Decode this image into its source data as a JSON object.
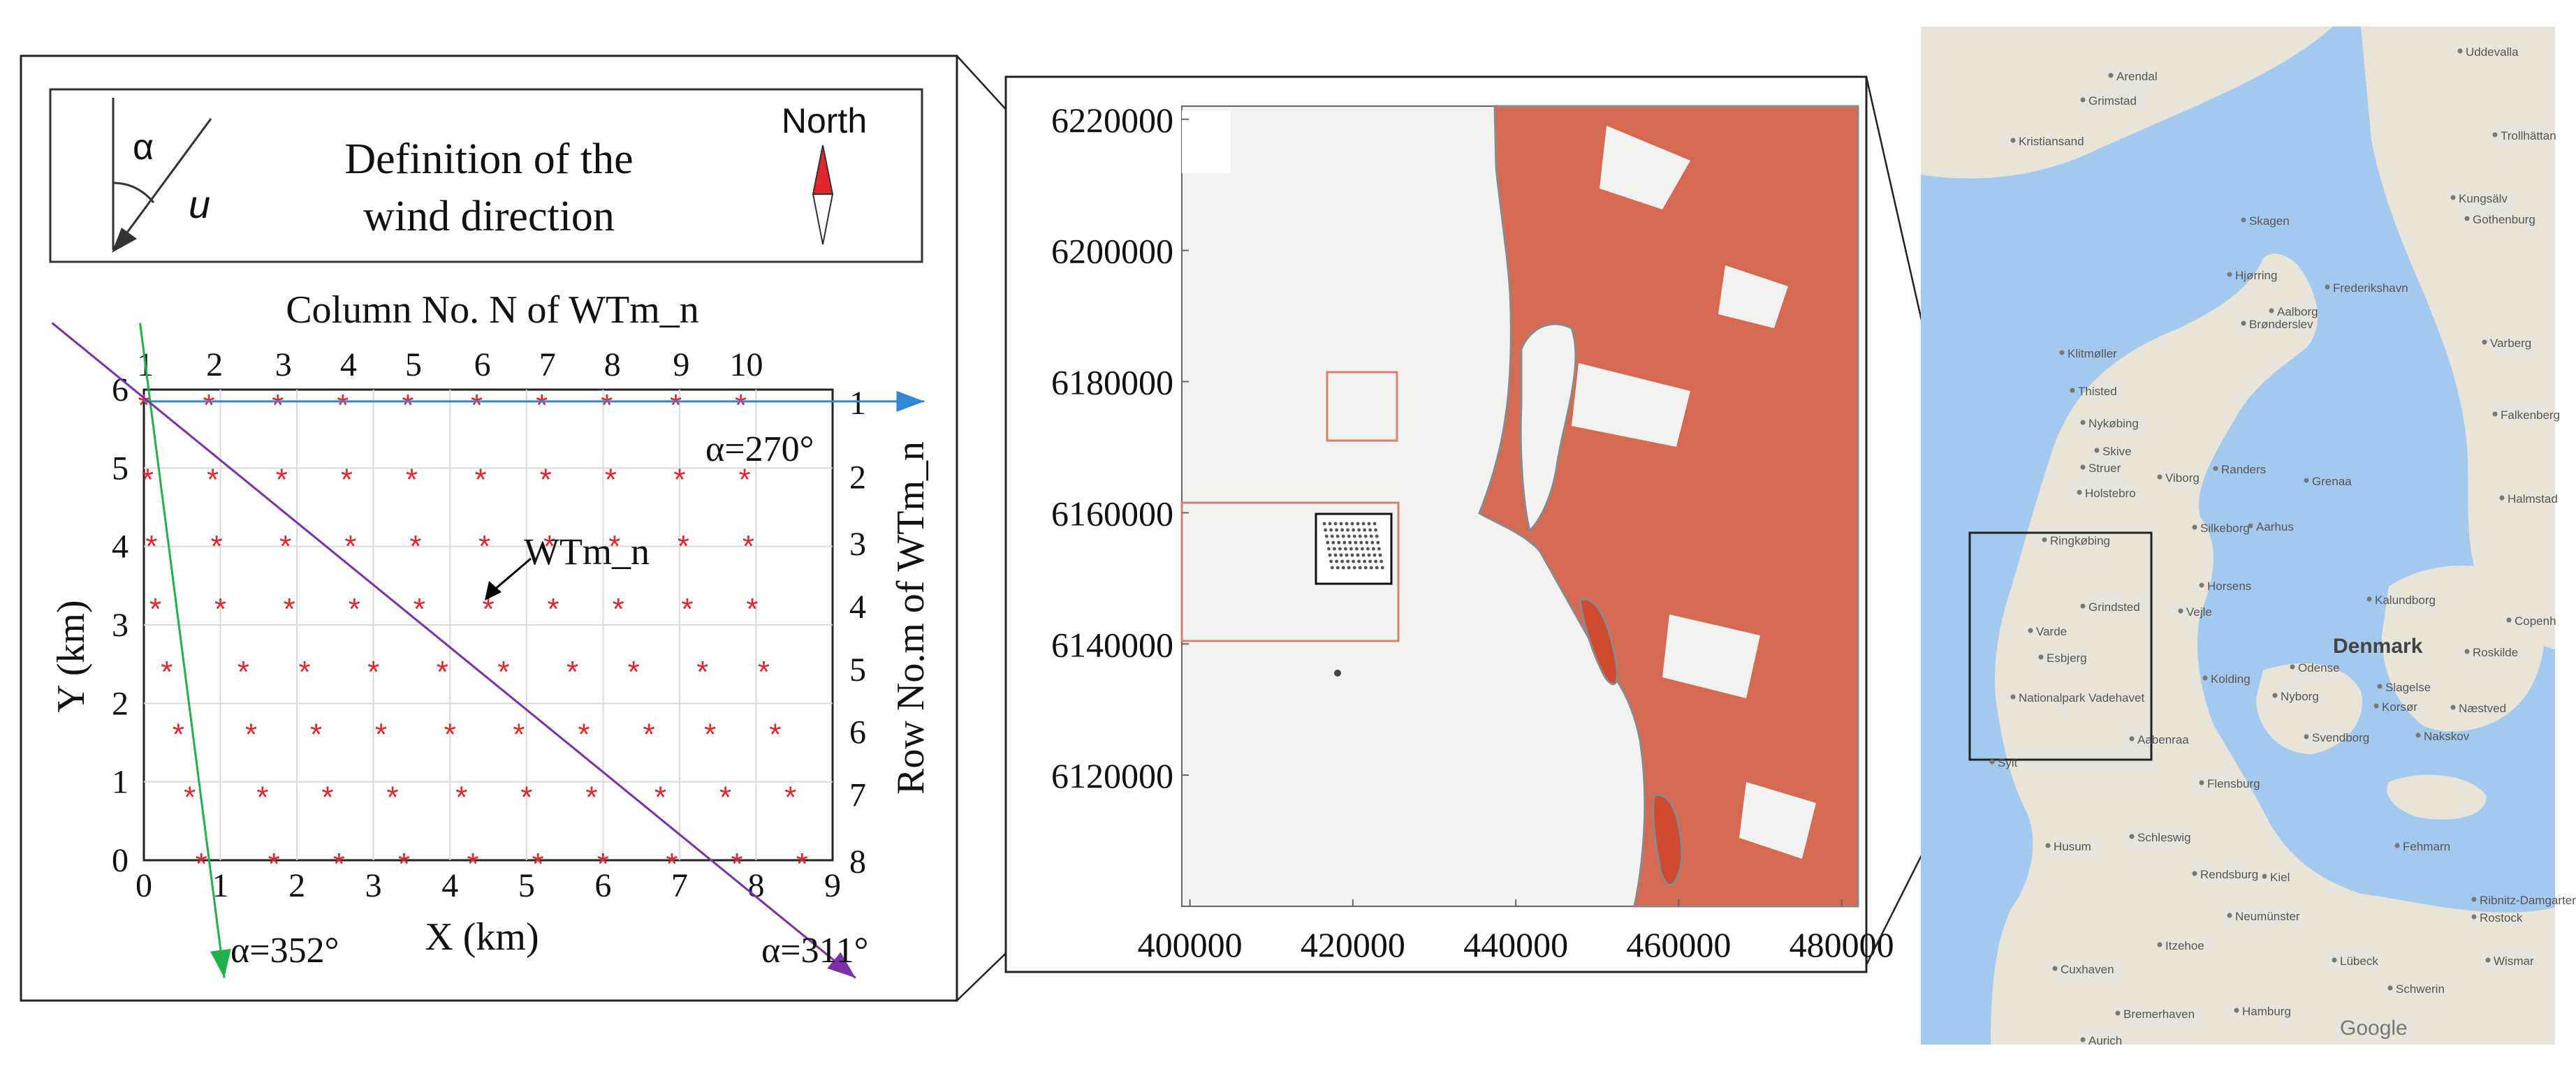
{
  "legend_box": {
    "alpha_symbol": "α",
    "u_symbol": "u",
    "definition_line1": "Definition of the",
    "definition_line2": "wind direction",
    "north_label": "North"
  },
  "layout_plot": {
    "top_axis_title": "Column No. N of WTm_n",
    "top_ticks": [
      "1",
      "2",
      "3",
      "4",
      "5",
      "6",
      "7",
      "8",
      "9",
      "10"
    ],
    "right_axis_title": "Row No.m of WTm_n",
    "right_ticks": [
      "1",
      "2",
      "3",
      "4",
      "5",
      "6",
      "7",
      "8"
    ],
    "xlabel": "X (km)",
    "ylabel": "Y (km)",
    "x_ticks": [
      "0",
      "1",
      "2",
      "3",
      "4",
      "5",
      "6",
      "7",
      "8",
      "9"
    ],
    "y_ticks": [
      "0",
      "1",
      "2",
      "3",
      "4",
      "5",
      "6"
    ],
    "xlim": [
      0,
      9
    ],
    "ylim": [
      0,
      6
    ],
    "turbine_label": "WTm_n",
    "wind_lines": [
      {
        "label": "α=270°",
        "color": "#2f88d6",
        "x": [
          0,
          10.2
        ],
        "y": [
          5.85,
          5.85
        ]
      },
      {
        "label": "α=352°",
        "color": "#1fb14a",
        "x": [
          -0.05,
          1.05
        ],
        "y": [
          6.85,
          -1.5
        ]
      },
      {
        "label": "α=311°",
        "color": "#7b2fa8",
        "x": [
          -1.2,
          9.3
        ],
        "y": [
          6.85,
          -1.5
        ]
      }
    ]
  },
  "chart_data": {
    "type": "scatter",
    "title": "",
    "xlabel": "X (km)",
    "ylabel": "Y (km)",
    "xlim": [
      0,
      9
    ],
    "ylim": [
      0,
      6
    ],
    "grid": true,
    "series": [
      {
        "name": "",
        "rows": [
          {
            "x": [
              0.0,
              0.85,
              1.75,
              2.6,
              3.45,
              4.35,
              5.2,
              6.05,
              6.95,
              7.8
            ],
            "y": 5.85
          },
          {
            "x": [
              0.05,
              0.9,
              1.8,
              2.65,
              3.5,
              4.4,
              5.25,
              6.1,
              7.0,
              7.85
            ],
            "y": 4.9
          },
          {
            "x": [
              0.1,
              0.95,
              1.85,
              2.7,
              3.55,
              4.45,
              5.3,
              6.15,
              7.05,
              7.9
            ],
            "y": 4.05
          },
          {
            "x": [
              0.15,
              1.0,
              1.9,
              2.75,
              3.6,
              4.5,
              5.35,
              6.2,
              7.1,
              7.95
            ],
            "y": 3.25
          },
          {
            "x": [
              0.3,
              1.3,
              2.1,
              3.0,
              3.9,
              4.7,
              5.6,
              6.4,
              7.3,
              8.1
            ],
            "y": 2.45
          },
          {
            "x": [
              0.45,
              1.4,
              2.25,
              3.1,
              4.0,
              4.9,
              5.75,
              6.6,
              7.4,
              8.25
            ],
            "y": 1.65
          },
          {
            "x": [
              0.6,
              1.55,
              2.4,
              3.25,
              4.15,
              5.0,
              5.85,
              6.75,
              7.6,
              8.45
            ],
            "y": 0.85
          },
          {
            "x": [
              0.75,
              1.7,
              2.55,
              3.4,
              4.3,
              5.15,
              6.0,
              6.9,
              7.75,
              8.6
            ],
            "y": 0.0
          }
        ]
      }
    ]
  },
  "coastline_map": {
    "x_ticks": [
      "400000",
      "420000",
      "440000",
      "460000",
      "480000"
    ],
    "y_ticks": [
      "6220000",
      "6200000",
      "6180000",
      "6160000",
      "6140000",
      "6120000"
    ],
    "xlim": [
      399000,
      482000
    ],
    "ylim": [
      6100000,
      6222000
    ]
  },
  "denmark_map": {
    "country_label": "Denmark",
    "cities": [
      {
        "name": "Arendal"
      },
      {
        "name": "Grimstad"
      },
      {
        "name": "Kristiansand"
      },
      {
        "name": "Uddevalla"
      },
      {
        "name": "Trollhättan"
      },
      {
        "name": "Gothenburg"
      },
      {
        "name": "Kungsälv"
      },
      {
        "name": "Skagen"
      },
      {
        "name": "Frederikshavn"
      },
      {
        "name": "Hjørring"
      },
      {
        "name": "Brønderslev"
      },
      {
        "name": "Aalborg"
      },
      {
        "name": "Klitmøller"
      },
      {
        "name": "Thisted"
      },
      {
        "name": "Nykøbing"
      },
      {
        "name": "Skive"
      },
      {
        "name": "Struer"
      },
      {
        "name": "Holstebro"
      },
      {
        "name": "Viborg"
      },
      {
        "name": "Randers"
      },
      {
        "name": "Grenaa"
      },
      {
        "name": "Ringkøbing"
      },
      {
        "name": "Silkeborg"
      },
      {
        "name": "Aarhus"
      },
      {
        "name": "Horsens"
      },
      {
        "name": "Grindsted"
      },
      {
        "name": "Vejle"
      },
      {
        "name": "Kalundborg"
      },
      {
        "name": "Copenh"
      },
      {
        "name": "Varde"
      },
      {
        "name": "Esbjerg"
      },
      {
        "name": "Kolding"
      },
      {
        "name": "Odense"
      },
      {
        "name": "Roskilde"
      },
      {
        "name": "Nationalpark Vadehavet"
      },
      {
        "name": "Slagelse"
      },
      {
        "name": "Nyborg"
      },
      {
        "name": "Korsør"
      },
      {
        "name": "Næstved"
      },
      {
        "name": "Sylt"
      },
      {
        "name": "Aabenraa"
      },
      {
        "name": "Svendborg"
      },
      {
        "name": "Flensburg"
      },
      {
        "name": "Nakskov"
      },
      {
        "name": "Husum"
      },
      {
        "name": "Schleswig"
      },
      {
        "name": "Fehmarn"
      },
      {
        "name": "Rendsburg"
      },
      {
        "name": "Kiel"
      },
      {
        "name": "Ribnitz-Damgarten"
      },
      {
        "name": "Rostock"
      },
      {
        "name": "Neumünster"
      },
      {
        "name": "Cuxhaven"
      },
      {
        "name": "Itzehoe"
      },
      {
        "name": "Lübeck"
      },
      {
        "name": "Wismar"
      },
      {
        "name": "Schwerin"
      },
      {
        "name": "Bremerhaven"
      },
      {
        "name": "Hamburg"
      },
      {
        "name": "Aurich"
      },
      {
        "name": "Varberg"
      },
      {
        "name": "Falkenberg"
      },
      {
        "name": "Halmstad"
      }
    ],
    "attribution": "Google"
  }
}
